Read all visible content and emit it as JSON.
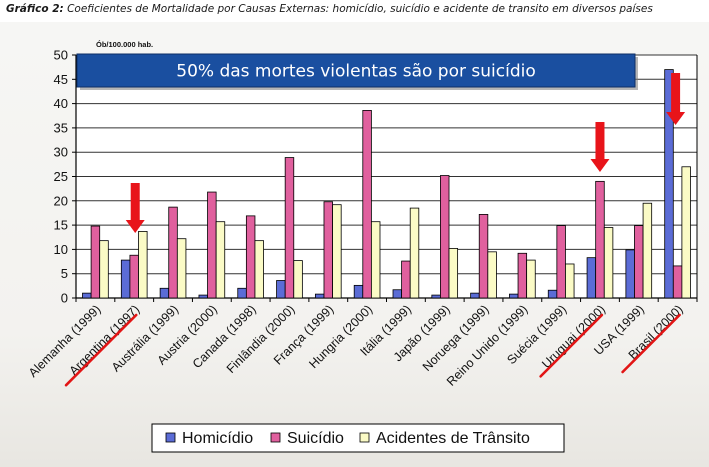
{
  "caption": {
    "prefix": "Gráfico 2:",
    "text": "Coeficientes de Mortalidade por Causas Externas: homicídio, suicídio e acidente de transito em diversos países"
  },
  "chart_data": {
    "type": "bar",
    "unit_label": "Ób/100.000 hab.",
    "banner": "50% das mortes violentas são por suicídio",
    "ylim": [
      0,
      50
    ],
    "yticks": [
      0,
      5,
      10,
      15,
      20,
      25,
      30,
      35,
      40,
      45,
      50
    ],
    "grid": true,
    "legend_position": "bottom",
    "categories": [
      "Alemanha (1999)",
      "Argentina (1997)",
      "Austrália (1999)",
      "Austria (2000)",
      "Canada (1998)",
      "Finlândia (2000)",
      "França (1999)",
      "Hungria (2000)",
      "Itália (1999)",
      "Japão (1999)",
      "Noruega (1999)",
      "Reino Unido (1999)",
      "Suécia (1999)",
      "Uruguai (2000)",
      "USA (1999)",
      "Brasil (2000)"
    ],
    "series": [
      {
        "name": "Homicídio",
        "color": "#5b6cd6",
        "values": [
          1.0,
          7.8,
          2.0,
          0.6,
          2.0,
          3.6,
          0.8,
          2.6,
          1.7,
          0.6,
          1.0,
          0.8,
          1.6,
          8.3,
          9.9,
          47.0
        ]
      },
      {
        "name": "Suicídio",
        "color": "#e0609e",
        "values": [
          14.8,
          8.8,
          18.7,
          21.8,
          16.9,
          28.9,
          19.8,
          38.6,
          7.6,
          25.2,
          17.2,
          9.2,
          14.9,
          24.0,
          14.9,
          6.6
        ]
      },
      {
        "name": "Acidentes de Trânsito",
        "color": "#fbfbc6",
        "values": [
          11.8,
          13.7,
          12.2,
          15.7,
          11.8,
          7.7,
          19.2,
          15.7,
          18.5,
          10.2,
          9.5,
          7.8,
          7.0,
          14.5,
          19.5,
          27.0
        ]
      }
    ],
    "highlighted": [
      "Argentina (1997)",
      "Uruguai (2000)",
      "Brasil (2000)"
    ]
  }
}
